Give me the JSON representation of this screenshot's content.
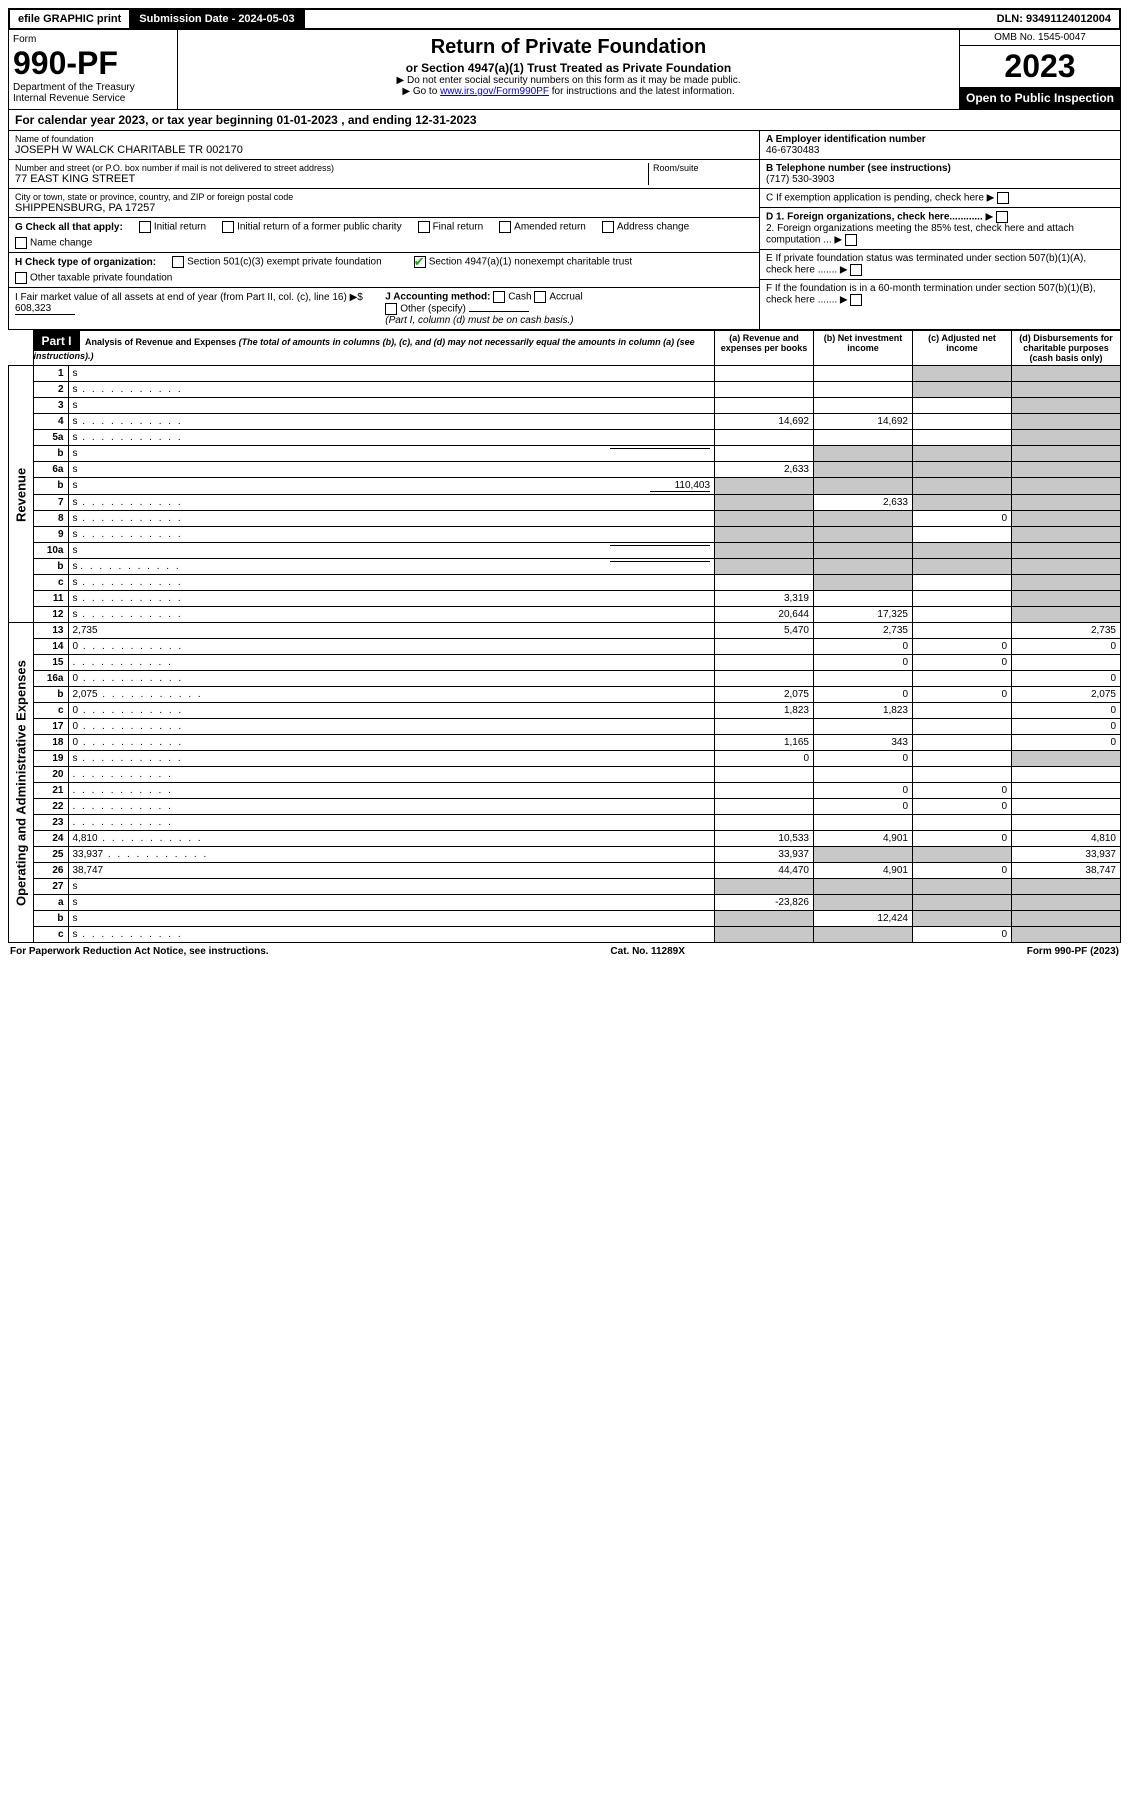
{
  "topbar": {
    "efile": "efile GRAPHIC print",
    "submission_label": "Submission Date - 2024-05-03",
    "dln": "DLN: 93491124012004"
  },
  "header": {
    "form_word": "Form",
    "form_no": "990-PF",
    "dept": "Department of the Treasury",
    "irs": "Internal Revenue Service",
    "title": "Return of Private Foundation",
    "subtitle": "or Section 4947(a)(1) Trust Treated as Private Foundation",
    "hint1": "▶ Do not enter social security numbers on this form as it may be made public.",
    "hint2_pre": "▶ Go to ",
    "hint2_link": "www.irs.gov/Form990PF",
    "hint2_post": " for instructions and the latest information.",
    "omb": "OMB No. 1545-0047",
    "year": "2023",
    "open": "Open to Public Inspection"
  },
  "calendar": {
    "pre": "For calendar year 2023, or tax year beginning ",
    "begin": "01-01-2023",
    "mid": " , and ending ",
    "end": "12-31-2023"
  },
  "info": {
    "name_label": "Name of foundation",
    "name": "JOSEPH W WALCK CHARITABLE TR 002170",
    "addr_label": "Number and street (or P.O. box number if mail is not delivered to street address)",
    "addr": "77 EAST KING STREET",
    "room_label": "Room/suite",
    "city_label": "City or town, state or province, country, and ZIP or foreign postal code",
    "city": "SHIPPENSBURG, PA  17257",
    "A_label": "A Employer identification number",
    "A": "46-6730483",
    "B_label": "B Telephone number (see instructions)",
    "B": "(717) 530-3903",
    "C": "C If exemption application is pending, check here",
    "D1": "D 1. Foreign organizations, check here............",
    "D2": "2. Foreign organizations meeting the 85% test, check here and attach computation ...",
    "E": "E If private foundation status was terminated under section 507(b)(1)(A), check here .......",
    "F": "F If the foundation is in a 60-month termination under section 507(b)(1)(B), check here .......",
    "G": "G Check all that apply:",
    "G_opts": [
      "Initial return",
      "Initial return of a former public charity",
      "Final return",
      "Amended return",
      "Address change",
      "Name change"
    ],
    "H": "H Check type of organization:",
    "H1": "Section 501(c)(3) exempt private foundation",
    "H2": "Section 4947(a)(1) nonexempt charitable trust",
    "H3": "Other taxable private foundation",
    "I": "I Fair market value of all assets at end of year (from Part II, col. (c), line 16) ▶$",
    "I_val": "608,323",
    "J": "J Accounting method:",
    "J_cash": "Cash",
    "J_accrual": "Accrual",
    "J_other": "Other (specify)",
    "J_note": "(Part I, column (d) must be on cash basis.)"
  },
  "part1": {
    "label": "Part I",
    "title": "Analysis of Revenue and Expenses",
    "note": "(The total of amounts in columns (b), (c), and (d) may not necessarily equal the amounts in column (a) (see instructions).)",
    "col_a": "(a) Revenue and expenses per books",
    "col_b": "(b) Net investment income",
    "col_c": "(c) Adjusted net income",
    "col_d": "(d) Disbursements for charitable purposes (cash basis only)"
  },
  "sidelabels": {
    "revenue": "Revenue",
    "expenses": "Operating and Administrative Expenses"
  },
  "rows": [
    {
      "n": "1",
      "d": "s",
      "a": "",
      "b": "",
      "c": "s"
    },
    {
      "n": "2",
      "d": "s",
      "a": "",
      "b": "",
      "c": "s",
      "dots": true
    },
    {
      "n": "3",
      "d": "s",
      "a": "",
      "b": "",
      "c": ""
    },
    {
      "n": "4",
      "d": "s",
      "a": "14,692",
      "b": "14,692",
      "c": "",
      "dots": true
    },
    {
      "n": "5a",
      "d": "s",
      "a": "",
      "b": "",
      "c": "",
      "dots": true
    },
    {
      "n": "b",
      "d": "s",
      "a": "",
      "b": "s",
      "c": "s",
      "inline": true
    },
    {
      "n": "6a",
      "d": "s",
      "a": "2,633",
      "b": "s",
      "c": "s"
    },
    {
      "n": "b",
      "d": "s",
      "a": "s",
      "b": "s",
      "c": "s",
      "inline_val": "110,403"
    },
    {
      "n": "7",
      "d": "s",
      "a": "s",
      "b": "2,633",
      "c": "s",
      "dots": true
    },
    {
      "n": "8",
      "d": "s",
      "a": "s",
      "b": "s",
      "c": "0",
      "dots": true
    },
    {
      "n": "9",
      "d": "s",
      "a": "s",
      "b": "s",
      "c": "",
      "dots": true
    },
    {
      "n": "10a",
      "d": "s",
      "a": "s",
      "b": "s",
      "c": "s",
      "inline": true
    },
    {
      "n": "b",
      "d": "s",
      "a": "s",
      "b": "s",
      "c": "s",
      "inline": true,
      "dots": true
    },
    {
      "n": "c",
      "d": "s",
      "a": "",
      "b": "s",
      "c": "",
      "dots": true
    },
    {
      "n": "11",
      "d": "s",
      "a": "3,319",
      "b": "",
      "c": "",
      "dots": true
    },
    {
      "n": "12",
      "d": "s",
      "a": "20,644",
      "b": "17,325",
      "c": "",
      "dots": true
    },
    {
      "n": "13",
      "d": "2,735",
      "a": "5,470",
      "b": "2,735",
      "c": ""
    },
    {
      "n": "14",
      "d": "0",
      "a": "",
      "b": "0",
      "c": "0",
      "dots": true
    },
    {
      "n": "15",
      "d": "",
      "a": "",
      "b": "0",
      "c": "0",
      "dots": true
    },
    {
      "n": "16a",
      "d": "0",
      "a": "",
      "b": "",
      "c": "",
      "dots": true
    },
    {
      "n": "b",
      "d": "2,075",
      "a": "2,075",
      "b": "0",
      "c": "0",
      "dots": true
    },
    {
      "n": "c",
      "d": "0",
      "a": "1,823",
      "b": "1,823",
      "c": "",
      "dots": true
    },
    {
      "n": "17",
      "d": "0",
      "a": "",
      "b": "",
      "c": "",
      "dots": true
    },
    {
      "n": "18",
      "d": "0",
      "a": "1,165",
      "b": "343",
      "c": "",
      "dots": true
    },
    {
      "n": "19",
      "d": "s",
      "a": "0",
      "b": "0",
      "c": "",
      "dots": true
    },
    {
      "n": "20",
      "d": "",
      "a": "",
      "b": "",
      "c": "",
      "dots": true
    },
    {
      "n": "21",
      "d": "",
      "a": "",
      "b": "0",
      "c": "0",
      "dots": true
    },
    {
      "n": "22",
      "d": "",
      "a": "",
      "b": "0",
      "c": "0",
      "dots": true
    },
    {
      "n": "23",
      "d": "",
      "a": "",
      "b": "",
      "c": "",
      "dots": true
    },
    {
      "n": "24",
      "d": "4,810",
      "a": "10,533",
      "b": "4,901",
      "c": "0",
      "dots": true
    },
    {
      "n": "25",
      "d": "33,937",
      "a": "33,937",
      "b": "s",
      "c": "s",
      "dots": true
    },
    {
      "n": "26",
      "d": "38,747",
      "a": "44,470",
      "b": "4,901",
      "c": "0"
    },
    {
      "n": "27",
      "d": "s",
      "a": "s",
      "b": "s",
      "c": "s"
    },
    {
      "n": "a",
      "d": "s",
      "a": "-23,826",
      "b": "s",
      "c": "s"
    },
    {
      "n": "b",
      "d": "s",
      "a": "s",
      "b": "12,424",
      "c": "s"
    },
    {
      "n": "c",
      "d": "s",
      "a": "s",
      "b": "s",
      "c": "0",
      "dots": true
    }
  ],
  "footer": {
    "left": "For Paperwork Reduction Act Notice, see instructions.",
    "mid": "Cat. No. 11289X",
    "right": "Form 990-PF (2023)"
  },
  "colors": {
    "shade": "#c8c8c8",
    "link": "#0000cc",
    "check": "#18a018"
  }
}
